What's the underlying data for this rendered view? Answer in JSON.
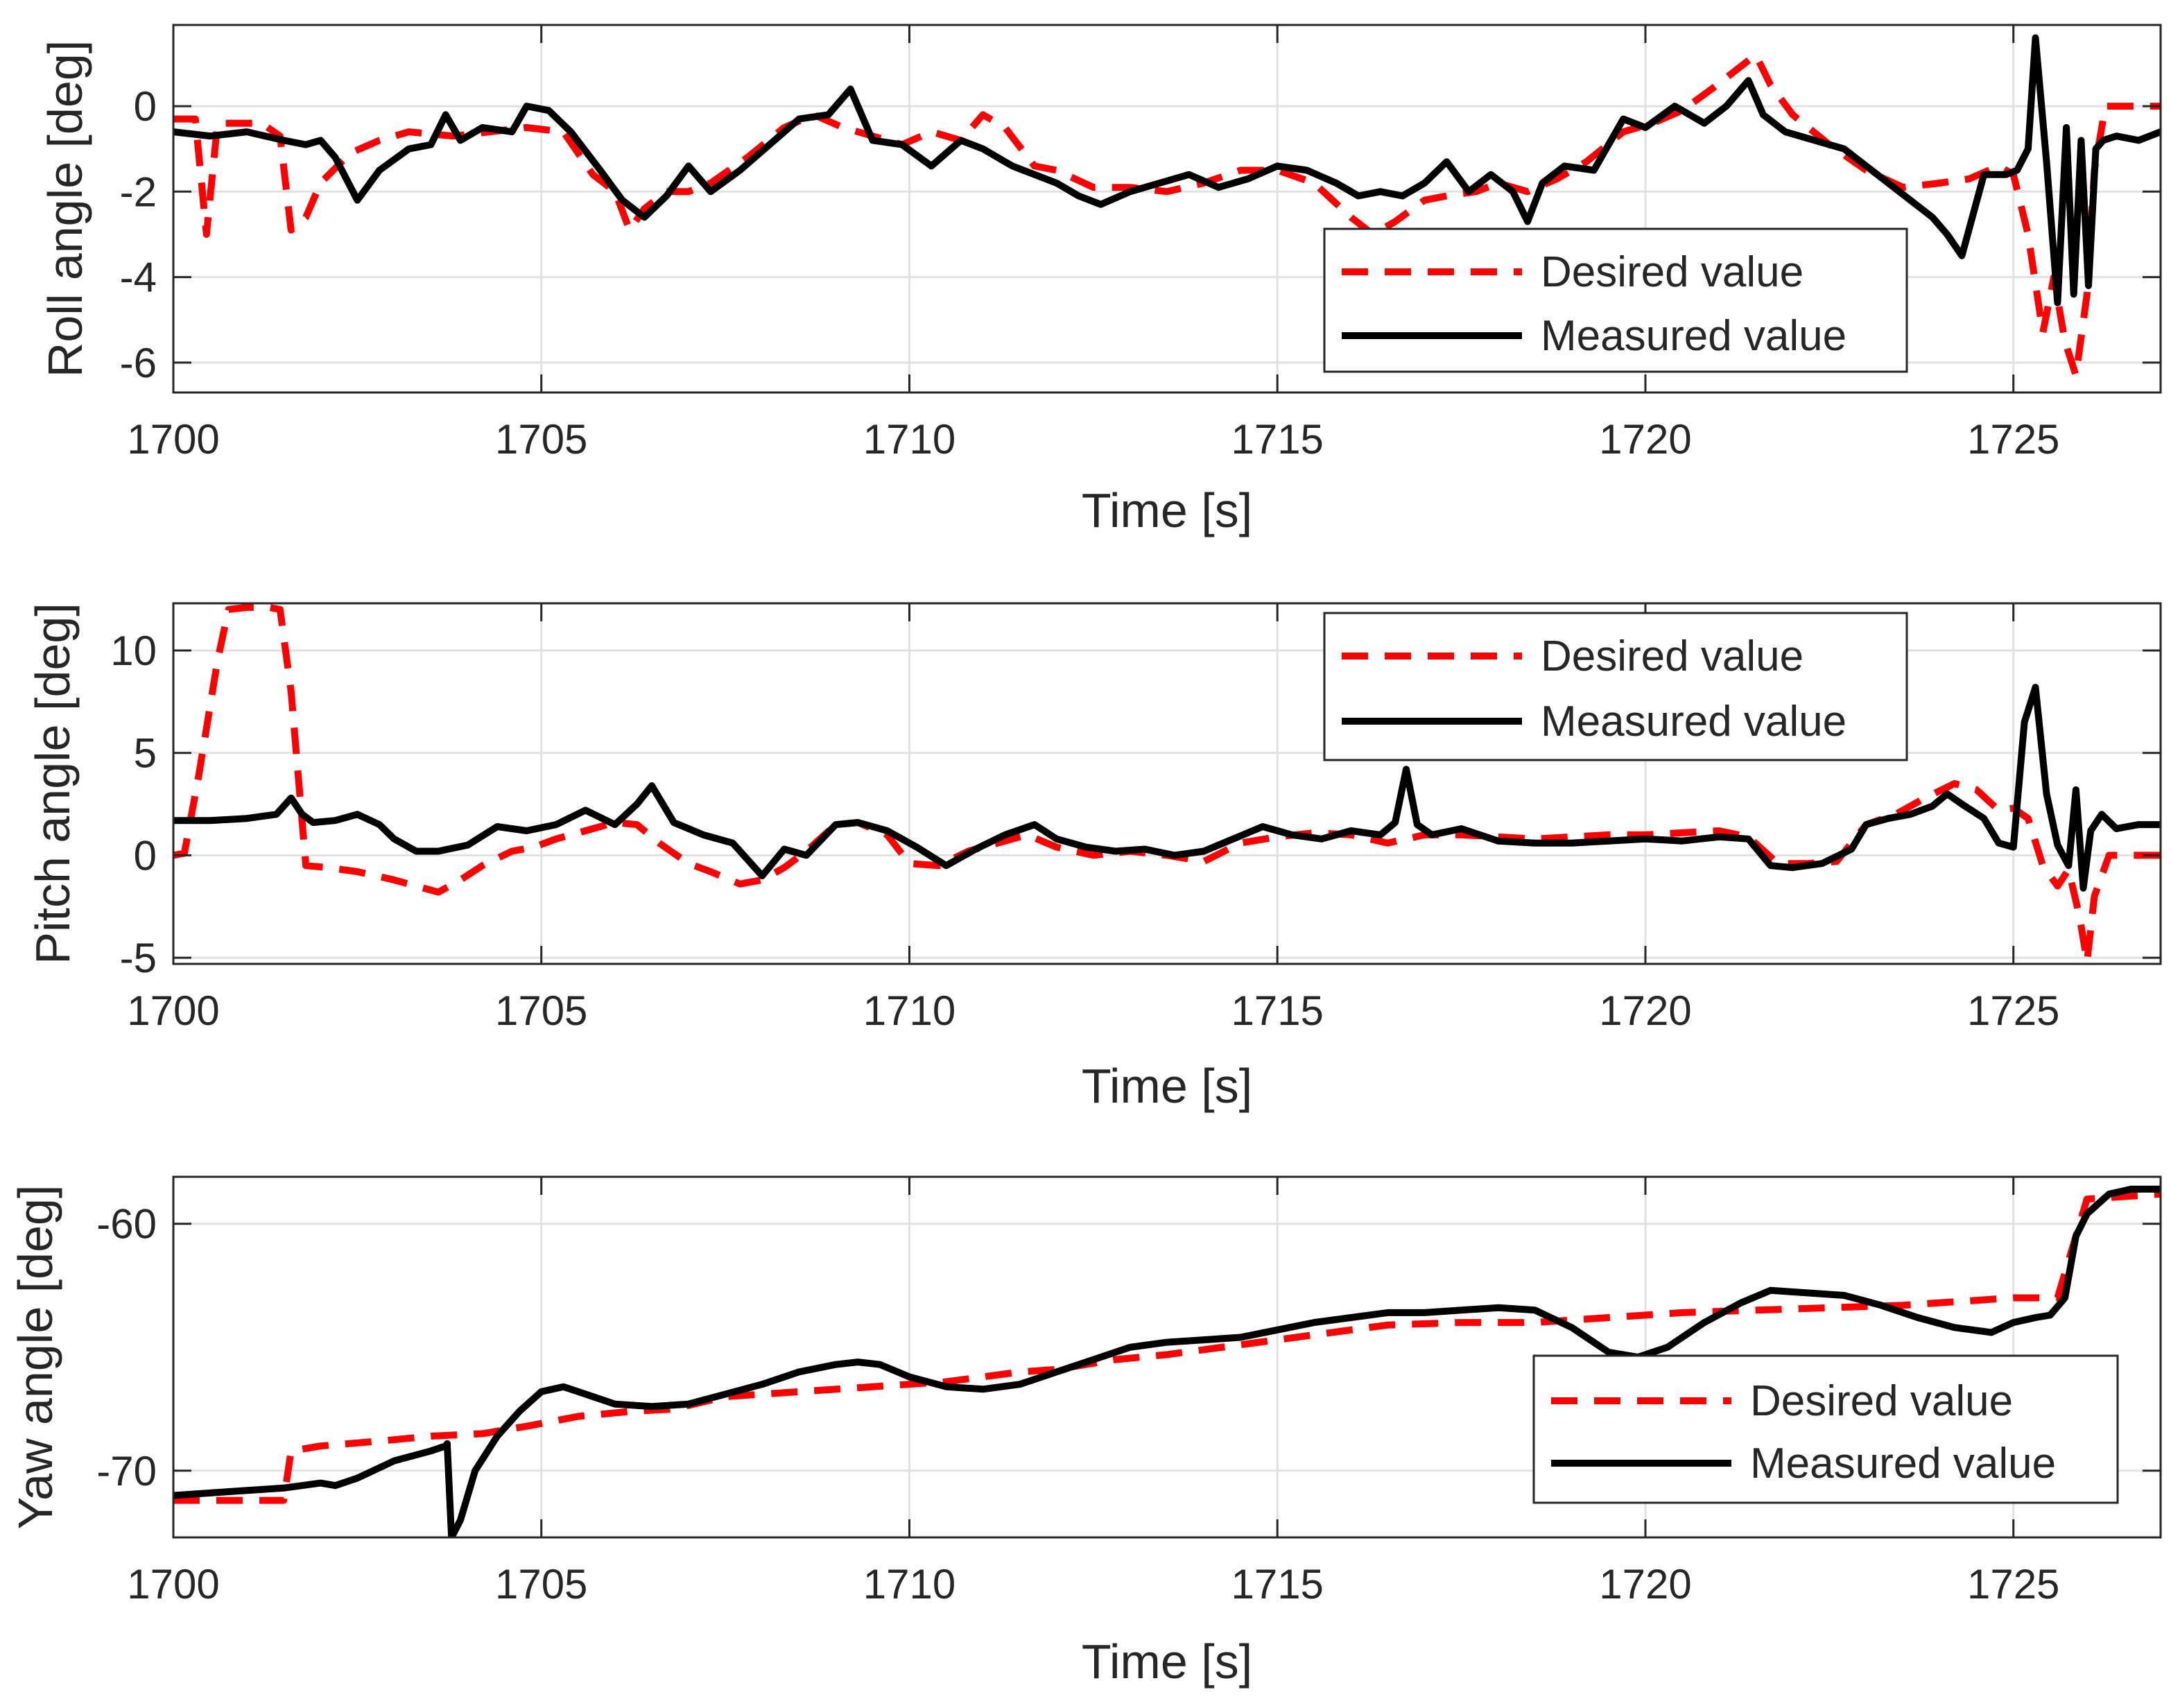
{
  "chart_data": [
    {
      "type": "line",
      "id": "roll",
      "xlabel": "Time [s]",
      "ylabel": "Roll angle [deg]",
      "xlim": [
        1700,
        1727
      ],
      "ylim": [
        -6.7,
        1.9
      ],
      "xticks": [
        1700,
        1705,
        1710,
        1715,
        1720,
        1725
      ],
      "yticks": [
        -6,
        -4,
        -2,
        0
      ],
      "grid": true,
      "legend_position": "bottom-right",
      "series": [
        {
          "name": "Desired value",
          "color": "#ff0000",
          "style": "dashed",
          "x": [
            1700,
            1700.3,
            1700.45,
            1700.6,
            1700.9,
            1701.2,
            1701.45,
            1701.6,
            1701.8,
            1702.0,
            1702.4,
            1702.8,
            1703.2,
            1703.8,
            1704.3,
            1704.8,
            1705.3,
            1705.7,
            1706.0,
            1706.2,
            1706.4,
            1706.7,
            1707.0,
            1707.3,
            1707.8,
            1708.3,
            1708.7,
            1709.1,
            1709.5,
            1709.9,
            1710.3,
            1710.7,
            1711.0,
            1711.3,
            1711.7,
            1712.0,
            1712.5,
            1713.0,
            1713.5,
            1714.0,
            1714.5,
            1715.0,
            1715.5,
            1716.0,
            1716.3,
            1716.6,
            1717.0,
            1717.3,
            1717.7,
            1718.0,
            1718.4,
            1718.8,
            1719.2,
            1719.7,
            1720.1,
            1720.5,
            1720.9,
            1721.2,
            1721.5,
            1721.7,
            1722.0,
            1722.5,
            1723.0,
            1723.5,
            1724.0,
            1724.4,
            1724.8,
            1725.0,
            1725.2,
            1725.4,
            1725.55,
            1725.7,
            1725.85,
            1726.0,
            1726.1,
            1726.25,
            1726.4,
            1726.7,
            1727.0
          ],
          "y": [
            -0.3,
            -0.3,
            -3.0,
            -0.4,
            -0.4,
            -0.4,
            -0.7,
            -2.9,
            -2.6,
            -1.8,
            -1.1,
            -0.8,
            -0.6,
            -0.7,
            -0.6,
            -0.5,
            -0.6,
            -1.6,
            -2.0,
            -2.9,
            -2.4,
            -2.0,
            -2.0,
            -1.8,
            -1.2,
            -0.5,
            -0.2,
            -0.5,
            -0.7,
            -0.9,
            -0.6,
            -0.8,
            -0.2,
            -0.5,
            -1.4,
            -1.5,
            -1.9,
            -1.9,
            -2.0,
            -1.8,
            -1.5,
            -1.5,
            -1.8,
            -2.6,
            -3.0,
            -2.7,
            -2.2,
            -2.1,
            -2.0,
            -1.8,
            -2.0,
            -1.7,
            -1.3,
            -0.6,
            -0.4,
            -0.1,
            0.4,
            0.8,
            1.2,
            0.5,
            -0.2,
            -0.9,
            -1.5,
            -1.9,
            -1.8,
            -1.7,
            -1.4,
            -1.6,
            -3.0,
            -5.3,
            -4.0,
            -5.5,
            -6.3,
            -4.4,
            -1.5,
            0.0,
            0.0,
            0.0,
            0.0
          ]
        },
        {
          "name": "Measured value",
          "color": "#000000",
          "style": "solid",
          "x": [
            1700,
            1700.5,
            1701.0,
            1701.5,
            1701.8,
            1702.0,
            1702.2,
            1702.5,
            1702.8,
            1703.2,
            1703.5,
            1703.7,
            1703.9,
            1704.2,
            1704.6,
            1704.8,
            1705.1,
            1705.4,
            1705.8,
            1706.1,
            1706.4,
            1706.7,
            1707.0,
            1707.3,
            1707.7,
            1708.1,
            1708.5,
            1708.9,
            1709.2,
            1709.5,
            1709.9,
            1710.3,
            1710.7,
            1711.0,
            1711.4,
            1711.7,
            1712.0,
            1712.3,
            1712.6,
            1713.0,
            1713.4,
            1713.8,
            1714.2,
            1714.6,
            1715.0,
            1715.4,
            1715.8,
            1716.1,
            1716.4,
            1716.7,
            1717.0,
            1717.3,
            1717.6,
            1717.9,
            1718.2,
            1718.4,
            1718.6,
            1718.9,
            1719.3,
            1719.7,
            1720.0,
            1720.4,
            1720.8,
            1721.1,
            1721.4,
            1721.6,
            1721.9,
            1722.3,
            1722.7,
            1723.0,
            1723.3,
            1723.6,
            1723.9,
            1724.1,
            1724.3,
            1724.6,
            1724.9,
            1725.05,
            1725.2,
            1725.3,
            1725.45,
            1725.6,
            1725.72,
            1725.82,
            1725.92,
            1726.02,
            1726.12,
            1726.22,
            1726.4,
            1726.7,
            1727.0
          ],
          "y": [
            -0.6,
            -0.7,
            -0.6,
            -0.8,
            -0.9,
            -0.8,
            -1.2,
            -2.2,
            -1.5,
            -1.0,
            -0.9,
            -0.2,
            -0.8,
            -0.5,
            -0.6,
            0.0,
            -0.1,
            -0.6,
            -1.5,
            -2.2,
            -2.6,
            -2.1,
            -1.4,
            -2.0,
            -1.5,
            -0.9,
            -0.3,
            -0.2,
            0.4,
            -0.8,
            -0.9,
            -1.4,
            -0.8,
            -1.0,
            -1.4,
            -1.6,
            -1.8,
            -2.1,
            -2.3,
            -2.0,
            -1.8,
            -1.6,
            -1.9,
            -1.7,
            -1.4,
            -1.5,
            -1.8,
            -2.1,
            -2.0,
            -2.1,
            -1.8,
            -1.3,
            -2.0,
            -1.6,
            -2.0,
            -2.7,
            -1.8,
            -1.4,
            -1.5,
            -0.3,
            -0.5,
            0.0,
            -0.4,
            0.0,
            0.6,
            -0.2,
            -0.6,
            -0.8,
            -1.0,
            -1.4,
            -1.8,
            -2.2,
            -2.6,
            -3.0,
            -3.5,
            -1.6,
            -1.6,
            -1.5,
            -1.0,
            1.6,
            -1.3,
            -4.6,
            -0.5,
            -4.4,
            -0.8,
            -4.2,
            -1.0,
            -0.8,
            -0.7,
            -0.8,
            -0.6
          ]
        }
      ]
    },
    {
      "type": "line",
      "id": "pitch",
      "xlabel": "Time [s]",
      "ylabel": "Pitch angle [deg]",
      "xlim": [
        1700,
        1727
      ],
      "ylim": [
        -5.3,
        12.3
      ],
      "xticks": [
        1700,
        1705,
        1710,
        1715,
        1720,
        1725
      ],
      "yticks": [
        -5,
        0,
        5,
        10
      ],
      "grid": true,
      "legend_position": "top-right",
      "series": [
        {
          "name": "Desired value",
          "color": "#ff0000",
          "style": "dashed",
          "x": [
            1700,
            1700.15,
            1700.35,
            1700.6,
            1700.75,
            1701.0,
            1701.3,
            1701.45,
            1701.6,
            1701.8,
            1702.1,
            1702.5,
            1703.0,
            1703.3,
            1703.6,
            1703.9,
            1704.2,
            1704.6,
            1704.9,
            1705.2,
            1705.6,
            1706.0,
            1706.3,
            1706.6,
            1707.0,
            1707.3,
            1707.7,
            1708.0,
            1708.3,
            1708.6,
            1709.0,
            1709.3,
            1709.7,
            1710.0,
            1710.4,
            1710.8,
            1711.2,
            1711.6,
            1712.0,
            1712.5,
            1713.0,
            1713.5,
            1714.0,
            1714.5,
            1715.0,
            1715.5,
            1716.0,
            1716.5,
            1717.0,
            1717.5,
            1718.0,
            1718.5,
            1719.0,
            1719.5,
            1720.0,
            1720.5,
            1721.0,
            1721.4,
            1721.8,
            1722.2,
            1722.6,
            1723.0,
            1723.4,
            1723.8,
            1724.2,
            1724.5,
            1724.8,
            1725.0,
            1725.2,
            1725.4,
            1725.6,
            1725.75,
            1725.9,
            1726.0,
            1726.1,
            1726.3,
            1726.6,
            1727.0
          ],
          "y": [
            0,
            0.1,
            4.0,
            9.5,
            12.0,
            12.1,
            12.1,
            12.0,
            8.0,
            -0.5,
            -0.6,
            -0.8,
            -1.2,
            -1.5,
            -1.8,
            -1.2,
            -0.5,
            0.2,
            0.4,
            0.8,
            1.2,
            1.6,
            1.5,
            0.6,
            -0.4,
            -0.8,
            -1.4,
            -1.2,
            -0.6,
            0.2,
            1.5,
            1.6,
            1.0,
            -0.4,
            -0.5,
            0.2,
            0.6,
            1.0,
            0.4,
            0.0,
            0.2,
            0.0,
            -0.3,
            0.6,
            0.9,
            1.1,
            1.0,
            0.6,
            1.0,
            1.0,
            0.9,
            0.8,
            0.9,
            1.0,
            1.0,
            1.1,
            1.2,
            0.9,
            -0.4,
            -0.4,
            -0.3,
            1.5,
            2.0,
            2.8,
            3.5,
            3.2,
            2.2,
            2.3,
            1.8,
            -0.5,
            -1.5,
            -0.7,
            -3.0,
            -5.2,
            -2.0,
            0.0,
            0.0,
            0.0
          ]
        },
        {
          "name": "Measured value",
          "color": "#000000",
          "style": "solid",
          "x": [
            1700,
            1700.5,
            1701.0,
            1701.4,
            1701.6,
            1701.75,
            1701.9,
            1702.2,
            1702.5,
            1702.8,
            1703.0,
            1703.3,
            1703.6,
            1704.0,
            1704.4,
            1704.8,
            1705.2,
            1705.6,
            1706.0,
            1706.3,
            1706.5,
            1706.8,
            1707.2,
            1707.6,
            1708.0,
            1708.3,
            1708.6,
            1709.0,
            1709.3,
            1709.7,
            1710.1,
            1710.5,
            1710.9,
            1711.3,
            1711.7,
            1712.0,
            1712.4,
            1712.8,
            1713.2,
            1713.6,
            1714.0,
            1714.4,
            1714.8,
            1715.2,
            1715.6,
            1716.0,
            1716.4,
            1716.6,
            1716.75,
            1716.9,
            1717.1,
            1717.5,
            1718.0,
            1718.5,
            1719.0,
            1719.5,
            1720.0,
            1720.5,
            1721.0,
            1721.4,
            1721.7,
            1722.0,
            1722.4,
            1722.8,
            1723.0,
            1723.3,
            1723.6,
            1723.9,
            1724.1,
            1724.3,
            1724.6,
            1724.8,
            1725.0,
            1725.15,
            1725.3,
            1725.45,
            1725.6,
            1725.75,
            1725.85,
            1725.95,
            1726.05,
            1726.2,
            1726.4,
            1726.7,
            1727.0
          ],
          "y": [
            1.7,
            1.7,
            1.8,
            2.0,
            2.8,
            2.0,
            1.6,
            1.7,
            2.0,
            1.5,
            0.8,
            0.2,
            0.2,
            0.5,
            1.4,
            1.2,
            1.5,
            2.2,
            1.5,
            2.5,
            3.4,
            1.6,
            1.0,
            0.6,
            -1.0,
            0.3,
            0.0,
            1.5,
            1.6,
            1.2,
            0.4,
            -0.5,
            0.3,
            1.0,
            1.5,
            0.8,
            0.4,
            0.2,
            0.3,
            0.0,
            0.2,
            0.8,
            1.4,
            1.0,
            0.8,
            1.2,
            1.0,
            1.6,
            4.2,
            1.5,
            1.0,
            1.3,
            0.7,
            0.6,
            0.6,
            0.7,
            0.8,
            0.7,
            0.9,
            0.8,
            -0.5,
            -0.6,
            -0.4,
            0.3,
            1.5,
            1.8,
            2.0,
            2.4,
            3.0,
            2.5,
            1.8,
            0.6,
            0.4,
            6.5,
            8.2,
            3.0,
            0.5,
            -0.5,
            3.2,
            -1.6,
            1.2,
            2.0,
            1.3,
            1.5,
            1.5
          ]
        }
      ]
    },
    {
      "type": "line",
      "id": "yaw",
      "xlabel": "Time [s]",
      "ylabel": "Yaw angle [deg]",
      "xlim": [
        1700,
        1727
      ],
      "ylim": [
        -72.7,
        -58.1
      ],
      "xticks": [
        1700,
        1705,
        1710,
        1715,
        1720,
        1725
      ],
      "yticks": [
        -70,
        -60
      ],
      "grid": true,
      "legend_position": "bottom-right",
      "series": [
        {
          "name": "Desired value",
          "color": "#ff0000",
          "style": "dashed",
          "x": [
            1700,
            1701.0,
            1701.5,
            1701.6,
            1702.0,
            1702.8,
            1703.5,
            1704.2,
            1704.8,
            1705.5,
            1706.2,
            1706.8,
            1707.5,
            1708.5,
            1709.5,
            1710.5,
            1711.5,
            1712.0,
            1712.8,
            1713.5,
            1714.5,
            1715.5,
            1716.5,
            1717.5,
            1718.5,
            1719.5,
            1720.5,
            1721.5,
            1722.5,
            1723.5,
            1724.5,
            1725.0,
            1725.6,
            1725.8,
            1726.0,
            1726.5,
            1727.0
          ],
          "y": [
            -71.2,
            -71.2,
            -71.2,
            -69.2,
            -69.0,
            -68.8,
            -68.6,
            -68.5,
            -68.2,
            -67.8,
            -67.6,
            -67.5,
            -67.0,
            -66.8,
            -66.6,
            -66.4,
            -66.0,
            -65.9,
            -65.5,
            -65.3,
            -64.9,
            -64.5,
            -64.1,
            -64.0,
            -64.0,
            -63.8,
            -63.6,
            -63.5,
            -63.4,
            -63.3,
            -63.1,
            -63.0,
            -63.0,
            -61.0,
            -59.0,
            -58.9,
            -58.8
          ]
        },
        {
          "name": "Measured value",
          "color": "#000000",
          "style": "solid",
          "x": [
            1700,
            1700.5,
            1701.0,
            1701.5,
            1702.0,
            1702.2,
            1702.5,
            1703.0,
            1703.5,
            1703.7,
            1703.72,
            1703.78,
            1703.9,
            1704.1,
            1704.4,
            1704.7,
            1705.0,
            1705.3,
            1705.6,
            1706.0,
            1706.5,
            1707.0,
            1707.5,
            1708.0,
            1708.5,
            1709.0,
            1709.3,
            1709.6,
            1710.0,
            1710.5,
            1711.0,
            1711.5,
            1712.0,
            1712.5,
            1713.0,
            1713.5,
            1714.0,
            1714.5,
            1715.0,
            1715.5,
            1716.0,
            1716.5,
            1717.0,
            1717.5,
            1718.0,
            1718.5,
            1719.0,
            1719.5,
            1719.9,
            1720.3,
            1720.8,
            1721.3,
            1721.7,
            1722.2,
            1722.7,
            1723.2,
            1723.7,
            1724.2,
            1724.7,
            1725.0,
            1725.3,
            1725.5,
            1725.7,
            1725.85,
            1726.0,
            1726.3,
            1726.6,
            1727.0
          ],
          "y": [
            -71.0,
            -70.9,
            -70.8,
            -70.7,
            -70.5,
            -70.6,
            -70.3,
            -69.6,
            -69.2,
            -69.0,
            -68.9,
            -72.7,
            -72.0,
            -70.0,
            -68.6,
            -67.6,
            -66.8,
            -66.6,
            -66.9,
            -67.3,
            -67.4,
            -67.3,
            -66.9,
            -66.5,
            -66.0,
            -65.7,
            -65.6,
            -65.7,
            -66.2,
            -66.6,
            -66.7,
            -66.5,
            -66.0,
            -65.5,
            -65.0,
            -64.8,
            -64.7,
            -64.6,
            -64.3,
            -64.0,
            -63.8,
            -63.6,
            -63.6,
            -63.5,
            -63.4,
            -63.5,
            -64.2,
            -65.2,
            -65.4,
            -65.0,
            -64.0,
            -63.2,
            -62.7,
            -62.8,
            -62.9,
            -63.3,
            -63.8,
            -64.2,
            -64.4,
            -64.0,
            -63.8,
            -63.7,
            -63.0,
            -60.5,
            -59.6,
            -58.8,
            -58.6,
            -58.6
          ]
        }
      ]
    }
  ]
}
